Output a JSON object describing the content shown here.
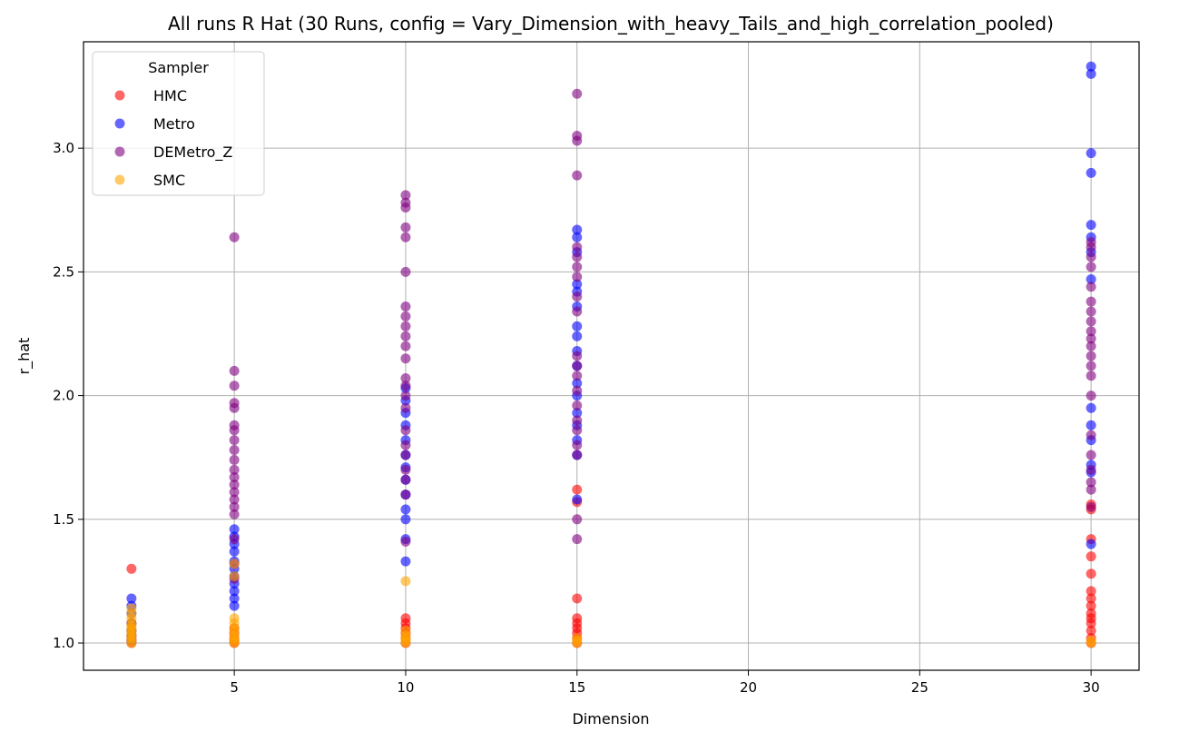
{
  "chart_data": {
    "type": "scatter",
    "title": "All runs R Hat (30 Runs, config = Vary_Dimension_with_heavy_Tails_and_high_correlation_pooled)",
    "xlabel": "Dimension",
    "ylabel": "r_hat",
    "xlim": [
      0.6,
      31.4
    ],
    "ylim": [
      0.89,
      3.43
    ],
    "xticks": [
      5,
      10,
      15,
      20,
      25,
      30
    ],
    "yticks": [
      1.0,
      1.5,
      2.0,
      2.5,
      3.0
    ],
    "grid": true,
    "legend": {
      "title": "Sampler",
      "position": "top-left"
    },
    "series": [
      {
        "name": "HMC",
        "color": "#ff0000",
        "points": [
          [
            2,
            1.0
          ],
          [
            2,
            1.01
          ],
          [
            2,
            1.02
          ],
          [
            2,
            1.03
          ],
          [
            2,
            1.05
          ],
          [
            2,
            1.08
          ],
          [
            2,
            1.3
          ],
          [
            5,
            1.0
          ],
          [
            5,
            1.01
          ],
          [
            5,
            1.02
          ],
          [
            5,
            1.04
          ],
          [
            5,
            1.06
          ],
          [
            10,
            1.0
          ],
          [
            10,
            1.02
          ],
          [
            10,
            1.04
          ],
          [
            10,
            1.06
          ],
          [
            10,
            1.08
          ],
          [
            10,
            1.1
          ],
          [
            15,
            1.0
          ],
          [
            15,
            1.02
          ],
          [
            15,
            1.04
          ],
          [
            15,
            1.06
          ],
          [
            15,
            1.08
          ],
          [
            15,
            1.1
          ],
          [
            15,
            1.18
          ],
          [
            15,
            1.57
          ],
          [
            15,
            1.62
          ],
          [
            30,
            1.0
          ],
          [
            30,
            1.02
          ],
          [
            30,
            1.05
          ],
          [
            30,
            1.08
          ],
          [
            30,
            1.1
          ],
          [
            30,
            1.12
          ],
          [
            30,
            1.15
          ],
          [
            30,
            1.18
          ],
          [
            30,
            1.21
          ],
          [
            30,
            1.28
          ],
          [
            30,
            1.35
          ],
          [
            30,
            1.42
          ],
          [
            30,
            1.54
          ],
          [
            30,
            1.56
          ]
        ]
      },
      {
        "name": "Metro",
        "color": "#0000ff",
        "points": [
          [
            2,
            1.01
          ],
          [
            2,
            1.03
          ],
          [
            2,
            1.05
          ],
          [
            2,
            1.08
          ],
          [
            2,
            1.12
          ],
          [
            2,
            1.15
          ],
          [
            2,
            1.18
          ],
          [
            5,
            1.15
          ],
          [
            5,
            1.18
          ],
          [
            5,
            1.21
          ],
          [
            5,
            1.24
          ],
          [
            5,
            1.27
          ],
          [
            5,
            1.3
          ],
          [
            5,
            1.33
          ],
          [
            5,
            1.37
          ],
          [
            5,
            1.4
          ],
          [
            5,
            1.43
          ],
          [
            5,
            1.46
          ],
          [
            10,
            1.33
          ],
          [
            10,
            1.42
          ],
          [
            10,
            1.5
          ],
          [
            10,
            1.54
          ],
          [
            10,
            1.6
          ],
          [
            10,
            1.66
          ],
          [
            10,
            1.71
          ],
          [
            10,
            1.76
          ],
          [
            10,
            1.82
          ],
          [
            10,
            1.88
          ],
          [
            10,
            1.93
          ],
          [
            10,
            1.98
          ],
          [
            10,
            2.03
          ],
          [
            15,
            1.58
          ],
          [
            15,
            1.76
          ],
          [
            15,
            1.82
          ],
          [
            15,
            1.88
          ],
          [
            15,
            1.93
          ],
          [
            15,
            2.0
          ],
          [
            15,
            2.05
          ],
          [
            15,
            2.12
          ],
          [
            15,
            2.18
          ],
          [
            15,
            2.24
          ],
          [
            15,
            2.28
          ],
          [
            15,
            2.36
          ],
          [
            15,
            2.42
          ],
          [
            15,
            2.45
          ],
          [
            15,
            2.58
          ],
          [
            15,
            2.64
          ],
          [
            15,
            2.67
          ],
          [
            30,
            1.4
          ],
          [
            30,
            1.69
          ],
          [
            30,
            1.72
          ],
          [
            30,
            1.82
          ],
          [
            30,
            1.88
          ],
          [
            30,
            1.95
          ],
          [
            30,
            2.47
          ],
          [
            30,
            2.58
          ],
          [
            30,
            2.64
          ],
          [
            30,
            2.69
          ],
          [
            30,
            2.9
          ],
          [
            30,
            2.98
          ],
          [
            30,
            3.3
          ],
          [
            30,
            3.33
          ]
        ]
      },
      {
        "name": "DEMetro_Z",
        "color": "#800080",
        "points": [
          [
            5,
            1.26
          ],
          [
            5,
            1.32
          ],
          [
            5,
            1.42
          ],
          [
            5,
            1.52
          ],
          [
            5,
            1.55
          ],
          [
            5,
            1.58
          ],
          [
            5,
            1.61
          ],
          [
            5,
            1.64
          ],
          [
            5,
            1.67
          ],
          [
            5,
            1.7
          ],
          [
            5,
            1.74
          ],
          [
            5,
            1.78
          ],
          [
            5,
            1.82
          ],
          [
            5,
            1.86
          ],
          [
            5,
            1.88
          ],
          [
            5,
            1.95
          ],
          [
            5,
            1.97
          ],
          [
            5,
            2.04
          ],
          [
            5,
            2.1
          ],
          [
            5,
            2.64
          ],
          [
            10,
            1.41
          ],
          [
            10,
            1.6
          ],
          [
            10,
            1.66
          ],
          [
            10,
            1.7
          ],
          [
            10,
            1.76
          ],
          [
            10,
            1.8
          ],
          [
            10,
            1.86
          ],
          [
            10,
            1.95
          ],
          [
            10,
            2.0
          ],
          [
            10,
            2.04
          ],
          [
            10,
            2.07
          ],
          [
            10,
            2.15
          ],
          [
            10,
            2.2
          ],
          [
            10,
            2.24
          ],
          [
            10,
            2.28
          ],
          [
            10,
            2.32
          ],
          [
            10,
            2.36
          ],
          [
            10,
            2.5
          ],
          [
            10,
            2.64
          ],
          [
            10,
            2.68
          ],
          [
            10,
            2.76
          ],
          [
            10,
            2.78
          ],
          [
            10,
            2.81
          ],
          [
            15,
            1.42
          ],
          [
            15,
            1.5
          ],
          [
            15,
            1.76
          ],
          [
            15,
            1.8
          ],
          [
            15,
            1.86
          ],
          [
            15,
            1.9
          ],
          [
            15,
            1.96
          ],
          [
            15,
            2.02
          ],
          [
            15,
            2.08
          ],
          [
            15,
            2.12
          ],
          [
            15,
            2.16
          ],
          [
            15,
            2.34
          ],
          [
            15,
            2.4
          ],
          [
            15,
            2.48
          ],
          [
            15,
            2.52
          ],
          [
            15,
            2.56
          ],
          [
            15,
            2.6
          ],
          [
            15,
            2.89
          ],
          [
            15,
            3.03
          ],
          [
            15,
            3.05
          ],
          [
            15,
            3.22
          ],
          [
            30,
            1.55
          ],
          [
            30,
            1.62
          ],
          [
            30,
            1.65
          ],
          [
            30,
            1.7
          ],
          [
            30,
            1.76
          ],
          [
            30,
            1.84
          ],
          [
            30,
            2.0
          ],
          [
            30,
            2.08
          ],
          [
            30,
            2.12
          ],
          [
            30,
            2.16
          ],
          [
            30,
            2.2
          ],
          [
            30,
            2.23
          ],
          [
            30,
            2.26
          ],
          [
            30,
            2.3
          ],
          [
            30,
            2.34
          ],
          [
            30,
            2.38
          ],
          [
            30,
            2.44
          ],
          [
            30,
            2.52
          ],
          [
            30,
            2.56
          ],
          [
            30,
            2.6
          ],
          [
            30,
            2.62
          ]
        ]
      },
      {
        "name": "SMC",
        "color": "#ffa500",
        "points": [
          [
            2,
            1.0
          ],
          [
            2,
            1.01
          ],
          [
            2,
            1.02
          ],
          [
            2,
            1.03
          ],
          [
            2,
            1.04
          ],
          [
            2,
            1.05
          ],
          [
            2,
            1.06
          ],
          [
            2,
            1.07
          ],
          [
            2,
            1.08
          ],
          [
            2,
            1.1
          ],
          [
            2,
            1.12
          ],
          [
            2,
            1.14
          ],
          [
            5,
            1.0
          ],
          [
            5,
            1.01
          ],
          [
            5,
            1.02
          ],
          [
            5,
            1.03
          ],
          [
            5,
            1.05
          ],
          [
            5,
            1.06
          ],
          [
            5,
            1.08
          ],
          [
            5,
            1.1
          ],
          [
            5,
            1.27
          ],
          [
            5,
            1.32
          ],
          [
            10,
            1.0
          ],
          [
            10,
            1.01
          ],
          [
            10,
            1.02
          ],
          [
            10,
            1.03
          ],
          [
            10,
            1.05
          ],
          [
            10,
            1.25
          ],
          [
            15,
            1.0
          ],
          [
            15,
            1.01
          ],
          [
            15,
            1.02
          ],
          [
            30,
            1.0
          ],
          [
            30,
            1.01
          ]
        ]
      }
    ]
  }
}
